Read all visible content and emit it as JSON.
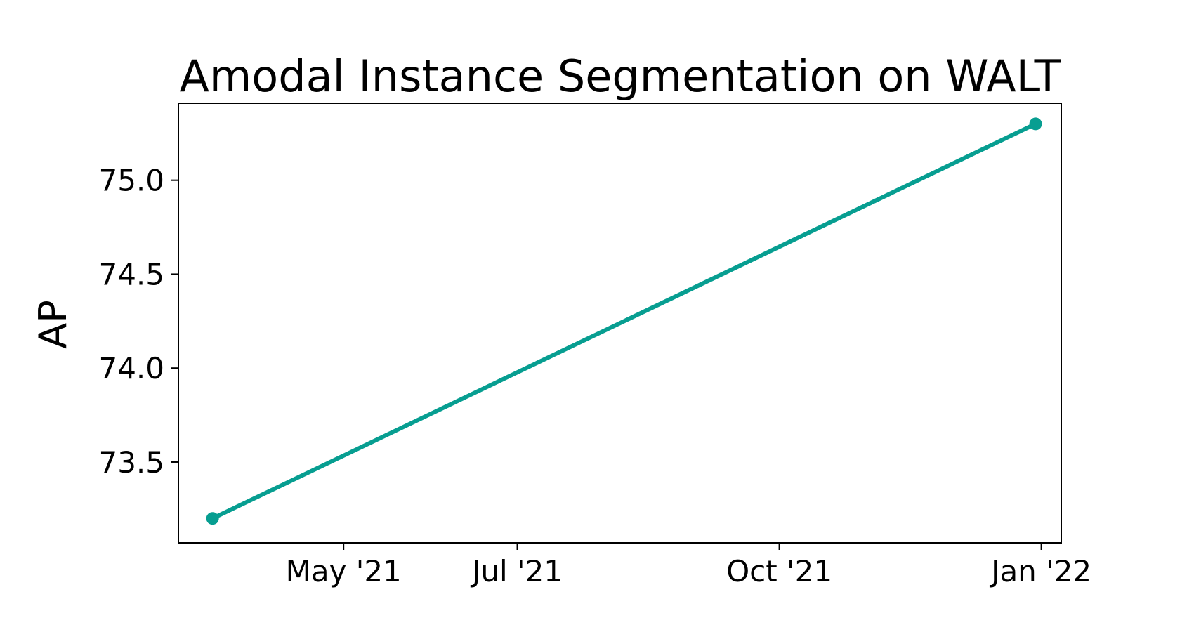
{
  "chart_data": {
    "type": "line",
    "title": "Amodal Instance Segmentation on WALT",
    "xlabel": "",
    "ylabel": "AP",
    "x_axis_type": "date",
    "xlim": [
      "2021-03-04",
      "2022-01-08"
    ],
    "ylim": [
      73.07,
      75.41
    ],
    "x_ticks": [
      {
        "date": "2021-05-01",
        "label": "May '21"
      },
      {
        "date": "2021-07-01",
        "label": "Jul '21"
      },
      {
        "date": "2021-10-01",
        "label": "Oct '21"
      },
      {
        "date": "2022-01-01",
        "label": "Jan '22"
      }
    ],
    "y_ticks": [
      {
        "value": 73.5,
        "label": "73.5"
      },
      {
        "value": 74.0,
        "label": "74.0"
      },
      {
        "value": 74.5,
        "label": "74.5"
      },
      {
        "value": 75.0,
        "label": "75.0"
      }
    ],
    "grid": false,
    "legend": "none",
    "series": [
      {
        "color": "#079e91",
        "points": [
          {
            "x": "2021-03-16",
            "y": 73.2
          },
          {
            "x": "2021-12-30",
            "y": 75.3
          }
        ]
      }
    ]
  }
}
